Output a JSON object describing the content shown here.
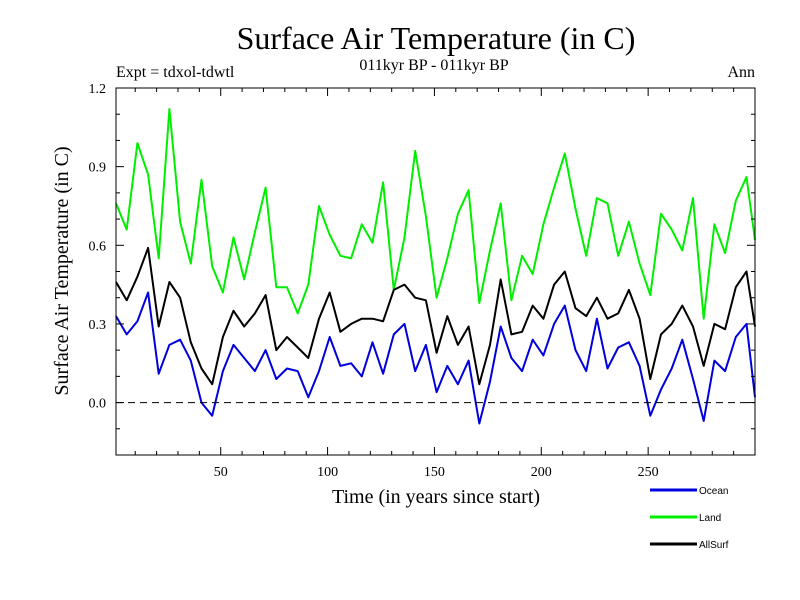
{
  "chart_data": {
    "type": "line",
    "title": "Surface Air Temperature (in C)",
    "subtitle": "011kyr BP - 011kyr BP",
    "expt_label": "Expt = tdxol-tdwtl",
    "season_label": "Ann",
    "xlabel": "Time (in years since start)",
    "ylabel": "Surface Air Temperature (in C)",
    "xlim": [
      1,
      300
    ],
    "ylim": [
      -0.2,
      1.2
    ],
    "xticks": [
      50,
      100,
      150,
      200,
      250
    ],
    "xtick_labels": [
      "50",
      "100",
      "150",
      "200",
      "250"
    ],
    "yticks": [
      0.0,
      0.3,
      0.6,
      0.9,
      1.2
    ],
    "ytick_labels": [
      "0.0",
      "0.3",
      "0.6",
      "0.9",
      "1.2"
    ],
    "zero_line": {
      "y": 0.0,
      "style": "dashed"
    },
    "legend_position": "bottom-right",
    "x": [
      1,
      6,
      11,
      16,
      21,
      26,
      31,
      36,
      41,
      46,
      51,
      56,
      61,
      66,
      71,
      76,
      81,
      86,
      91,
      96,
      101,
      106,
      111,
      116,
      121,
      126,
      131,
      136,
      141,
      146,
      151,
      156,
      161,
      166,
      171,
      176,
      181,
      186,
      191,
      196,
      201,
      206,
      211,
      216,
      221,
      226,
      231,
      236,
      241,
      246,
      251,
      256,
      261,
      266,
      271,
      276,
      281,
      286,
      291,
      296,
      300
    ],
    "series": [
      {
        "name": "Ocean",
        "color": "#0000dd",
        "values": [
          0.33,
          0.26,
          0.31,
          0.42,
          0.11,
          0.22,
          0.24,
          0.16,
          0.0,
          -0.05,
          0.12,
          0.22,
          0.17,
          0.12,
          0.2,
          0.09,
          0.13,
          0.12,
          0.02,
          0.12,
          0.25,
          0.14,
          0.15,
          0.1,
          0.23,
          0.11,
          0.26,
          0.3,
          0.12,
          0.22,
          0.04,
          0.14,
          0.07,
          0.16,
          -0.08,
          0.08,
          0.29,
          0.17,
          0.12,
          0.24,
          0.18,
          0.3,
          0.37,
          0.2,
          0.12,
          0.32,
          0.13,
          0.21,
          0.23,
          0.14,
          -0.05,
          0.05,
          0.13,
          0.24,
          0.09,
          -0.07,
          0.16,
          0.12,
          0.25,
          0.3,
          0.02
        ]
      },
      {
        "name": "Land",
        "color": "#00ee00",
        "values": [
          0.76,
          0.66,
          0.99,
          0.87,
          0.55,
          1.12,
          0.69,
          0.53,
          0.85,
          0.52,
          0.42,
          0.63,
          0.47,
          0.65,
          0.82,
          0.44,
          0.44,
          0.34,
          0.45,
          0.75,
          0.64,
          0.56,
          0.55,
          0.68,
          0.61,
          0.84,
          0.43,
          0.63,
          0.96,
          0.71,
          0.4,
          0.55,
          0.72,
          0.81,
          0.38,
          0.58,
          0.76,
          0.39,
          0.56,
          0.49,
          0.68,
          0.82,
          0.95,
          0.74,
          0.56,
          0.78,
          0.76,
          0.56,
          0.69,
          0.53,
          0.41,
          0.72,
          0.66,
          0.58,
          0.78,
          0.32,
          0.68,
          0.57,
          0.77,
          0.86,
          0.62
        ]
      },
      {
        "name": "AllSurf",
        "color": "#000000",
        "values": [
          0.46,
          0.39,
          0.48,
          0.59,
          0.29,
          0.46,
          0.4,
          0.23,
          0.13,
          0.07,
          0.25,
          0.35,
          0.29,
          0.34,
          0.41,
          0.2,
          0.25,
          0.21,
          0.17,
          0.32,
          0.42,
          0.27,
          0.3,
          0.32,
          0.32,
          0.31,
          0.43,
          0.45,
          0.4,
          0.39,
          0.19,
          0.33,
          0.22,
          0.29,
          0.07,
          0.22,
          0.47,
          0.26,
          0.27,
          0.37,
          0.32,
          0.45,
          0.5,
          0.36,
          0.33,
          0.4,
          0.32,
          0.34,
          0.43,
          0.32,
          0.09,
          0.26,
          0.3,
          0.37,
          0.29,
          0.14,
          0.3,
          0.28,
          0.44,
          0.5,
          0.29
        ]
      }
    ]
  }
}
